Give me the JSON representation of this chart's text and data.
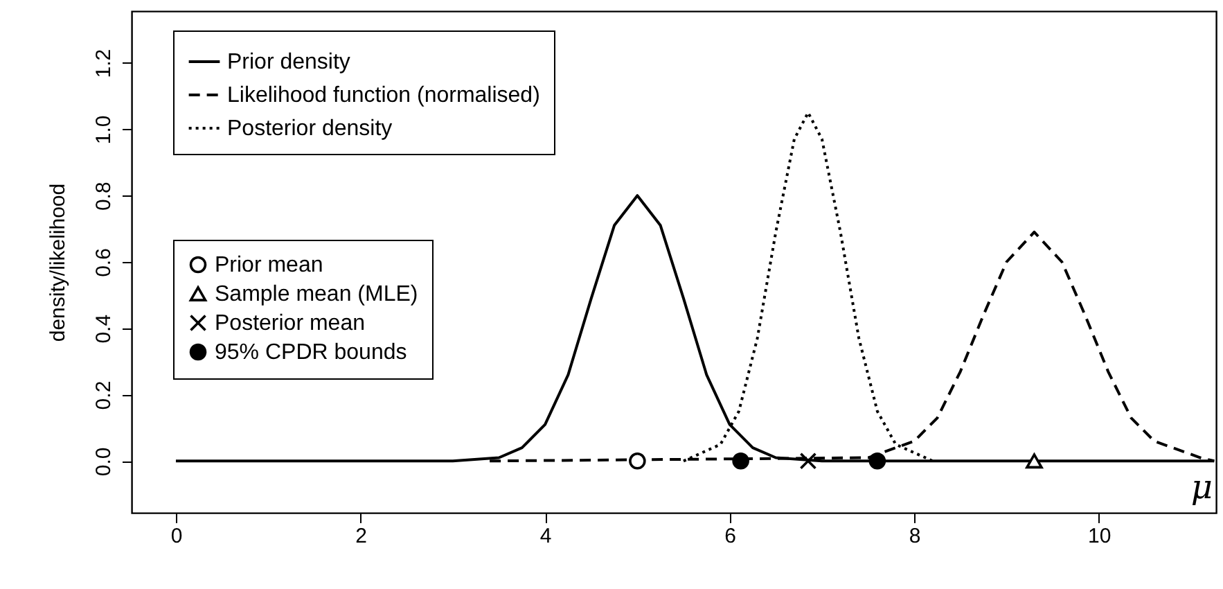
{
  "chart_data": {
    "type": "line",
    "xlabel": "μ",
    "ylabel": "density/likelihood",
    "xlim": [
      -0.48,
      11.27
    ],
    "ylim": [
      -0.156,
      1.356
    ],
    "xticks": [
      0,
      2,
      4,
      6,
      8,
      10
    ],
    "yticks": [
      {
        "value": 0,
        "label": "0.0"
      },
      0.2,
      0.4,
      0.6,
      0.8,
      {
        "value": 1,
        "label": "1.0"
      },
      1.2
    ],
    "legend": "top left",
    "series": [
      {
        "name": "Prior density",
        "line_style": "solid",
        "color": "#000000",
        "x": [
          0,
          3,
          3.5,
          3.75,
          4,
          4.25,
          4.5,
          4.75,
          5,
          5.25,
          5.5,
          5.75,
          6,
          6.25,
          6.5,
          7,
          11.25
        ],
        "values": [
          0,
          0,
          0.01,
          0.04,
          0.11,
          0.26,
          0.49,
          0.71,
          0.8,
          0.71,
          0.49,
          0.26,
          0.11,
          0.04,
          0.01,
          0,
          0
        ]
      },
      {
        "name": "Likelihood function (normalised)",
        "line_style": "dashed",
        "color": "#000000",
        "x": [
          3.4,
          7.5,
          8,
          8.25,
          8.5,
          8.75,
          9,
          9.3,
          9.6,
          9.85,
          10.1,
          10.35,
          10.6,
          11.1,
          11.25
        ],
        "values": [
          0,
          0.01,
          0.06,
          0.13,
          0.27,
          0.44,
          0.6,
          0.69,
          0.6,
          0.44,
          0.27,
          0.13,
          0.06,
          0.01,
          0
        ]
      },
      {
        "name": "Posterior density",
        "line_style": "dotted",
        "color": "#000000",
        "x": [
          5.5,
          5.9,
          6.1,
          6.3,
          6.5,
          6.7,
          6.85,
          7,
          7.2,
          7.4,
          7.6,
          7.8,
          8.2
        ],
        "values": [
          0,
          0.05,
          0.15,
          0.37,
          0.69,
          0.97,
          1.05,
          0.97,
          0.69,
          0.37,
          0.15,
          0.05,
          0
        ]
      },
      {
        "name": "Prior mean",
        "type": "scatter",
        "marker": "circle",
        "color": "#000000",
        "x": [
          5
        ],
        "values": [
          0
        ]
      },
      {
        "name": "Sample mean (MLE)",
        "type": "scatter",
        "marker": "triangle",
        "color": "#000000",
        "x": [
          9.3
        ],
        "values": [
          0
        ]
      },
      {
        "name": "Posterior mean",
        "type": "scatter",
        "marker": "cross",
        "color": "#000000",
        "x": [
          6.85
        ],
        "values": [
          0
        ]
      },
      {
        "name": "95% CPDR bounds",
        "type": "scatter",
        "marker": "circle-filled",
        "color": "#000000",
        "x": [
          6.12,
          7.6
        ],
        "values": [
          0,
          0
        ]
      }
    ]
  }
}
